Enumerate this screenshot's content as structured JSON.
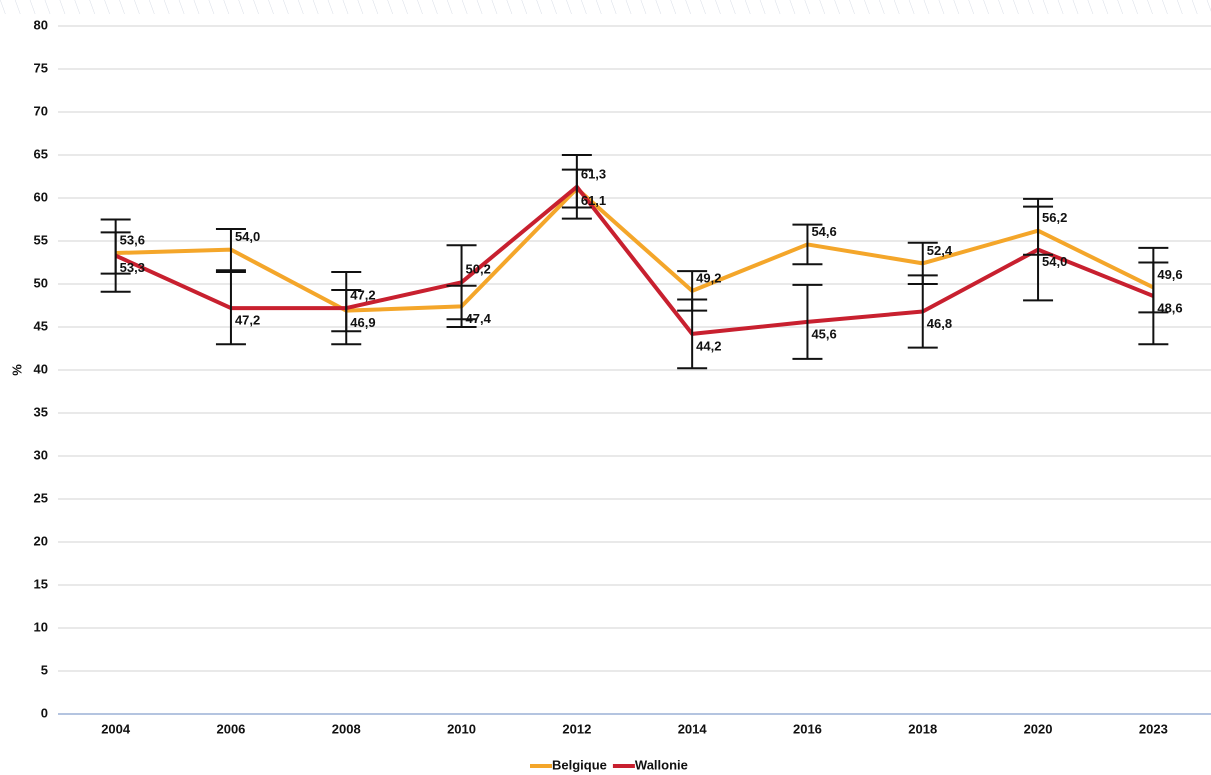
{
  "chart_data": {
    "type": "line",
    "y_label": "%",
    "categories": [
      "2004",
      "2006",
      "2008",
      "2010",
      "2012",
      "2014",
      "2016",
      "2018",
      "2020",
      "2023"
    ],
    "series": [
      {
        "name": "Belgique",
        "color": "#f4a62a",
        "values": [
          53.6,
          54.0,
          46.9,
          47.4,
          61.1,
          49.2,
          54.6,
          52.4,
          56.2,
          49.6
        ],
        "value_labels": [
          "53,6",
          "54,0",
          "46,9",
          "47,4",
          "61,1",
          "49,2",
          "54,6",
          "52,4",
          "56,2",
          "49,6"
        ],
        "errors": [
          2.4,
          2.4,
          2.4,
          2.4,
          2.2,
          2.3,
          2.3,
          2.4,
          2.8,
          2.9
        ]
      },
      {
        "name": "Wallonie",
        "color": "#c8202f",
        "values": [
          53.3,
          47.2,
          47.2,
          50.2,
          61.3,
          44.2,
          45.6,
          46.8,
          54.0,
          48.6
        ],
        "value_labels": [
          "53,3",
          "47,2",
          "47,2",
          "50,2",
          "61,3",
          "44,2",
          "45,6",
          "46,8",
          "54,0",
          "48,6"
        ],
        "errors": [
          4.2,
          4.2,
          4.2,
          4.3,
          3.7,
          4.0,
          4.3,
          4.2,
          5.9,
          5.6
        ]
      }
    ],
    "ylim": [
      0,
      80
    ],
    "yticks": [
      0,
      5,
      10,
      15,
      20,
      25,
      30,
      35,
      40,
      45,
      50,
      55,
      60,
      65,
      70,
      75,
      80
    ],
    "grid": true,
    "legend": "bottom"
  }
}
